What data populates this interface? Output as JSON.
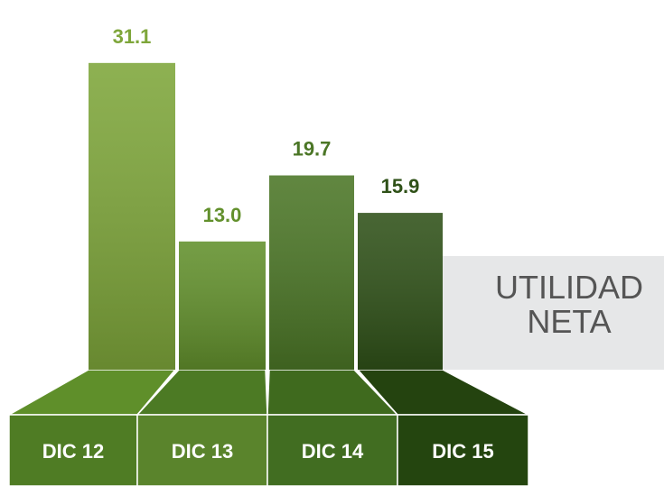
{
  "chart_data": {
    "type": "bar",
    "title": "UTILIDAD NETA",
    "categories": [
      "DIC 12",
      "DIC 13",
      "DIC 14",
      "DIC 15"
    ],
    "values": [
      31.1,
      13.0,
      19.7,
      15.9
    ],
    "value_labels": [
      "31.1",
      "13.0",
      "19.7",
      "15.9"
    ],
    "colors": [
      "#7ea63a",
      "#62902c",
      "#4b7626",
      "#2f5118"
    ],
    "ylim": [
      0,
      32
    ]
  }
}
